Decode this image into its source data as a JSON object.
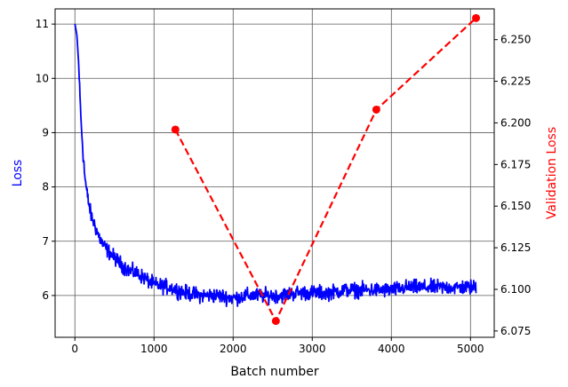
{
  "chart_data": {
    "type": "line",
    "xlabel": "Batch number",
    "ylabel_left": "Loss",
    "ylabel_right": "Validation Loss",
    "xlim": [
      -250,
      5300
    ],
    "ylim_left": [
      5.23,
      11.28
    ],
    "ylim_right": [
      6.0712,
      6.2685
    ],
    "grid": true,
    "colors": {
      "train": "#0000ff",
      "validation": "#ff0000",
      "grid": "#5a5a5a"
    },
    "x_ticks": [
      0,
      1000,
      2000,
      3000,
      4000,
      5000
    ],
    "x_tick_labels": [
      "0",
      "1000",
      "2000",
      "3000",
      "4000",
      "5000"
    ],
    "y_left_ticks": [
      6,
      7,
      8,
      9,
      10,
      11
    ],
    "y_left_tick_labels": [
      "6",
      "7",
      "8",
      "9",
      "10",
      "11"
    ],
    "y_right_ticks": [
      6.075,
      6.1,
      6.125,
      6.15,
      6.175,
      6.2,
      6.225,
      6.25
    ],
    "y_right_tick_labels": [
      "6.075",
      "6.100",
      "6.125",
      "6.150",
      "6.175",
      "6.200",
      "6.225",
      "6.250"
    ],
    "series": [
      {
        "axis": "left",
        "style": "solid-noisy",
        "x": [
          0,
          25,
          50,
          75,
          100,
          125,
          150,
          175,
          200,
          250,
          300,
          350,
          400,
          500,
          600,
          700,
          800,
          900,
          1000,
          1200,
          1400,
          1600,
          1800,
          2000,
          2200,
          2400,
          2600,
          2800,
          3000,
          3200,
          3400,
          3600,
          3800,
          4000,
          4200,
          4400,
          4600,
          4800,
          5000,
          5070
        ],
        "values": [
          11.0,
          10.8,
          10.2,
          9.3,
          8.7,
          8.2,
          7.9,
          7.7,
          7.5,
          7.3,
          7.1,
          6.95,
          6.85,
          6.7,
          6.55,
          6.45,
          6.4,
          6.3,
          6.2,
          6.15,
          6.05,
          6.0,
          6.0,
          5.95,
          6.0,
          6.0,
          6.0,
          6.05,
          6.05,
          6.05,
          6.1,
          6.1,
          6.1,
          6.1,
          6.15,
          6.15,
          6.15,
          6.15,
          6.15,
          6.15
        ],
        "noise": [
          0,
          0.05,
          0.1,
          0.2,
          0.22,
          0.22,
          0.22,
          0.2,
          0.2,
          0.2,
          0.2,
          0.2,
          0.2,
          0.2,
          0.2,
          0.2,
          0.2,
          0.2,
          0.2,
          0.2,
          0.2,
          0.2,
          0.2,
          0.2,
          0.2,
          0.2,
          0.2,
          0.2,
          0.2,
          0.2,
          0.2,
          0.2,
          0.2,
          0.2,
          0.2,
          0.2,
          0.2,
          0.2,
          0.2,
          0.2
        ]
      },
      {
        "axis": "right",
        "style": "dashed-markers",
        "x": [
          1270,
          2540,
          3810,
          5070
        ],
        "values": [
          6.196,
          6.081,
          6.208,
          6.263
        ]
      }
    ]
  }
}
